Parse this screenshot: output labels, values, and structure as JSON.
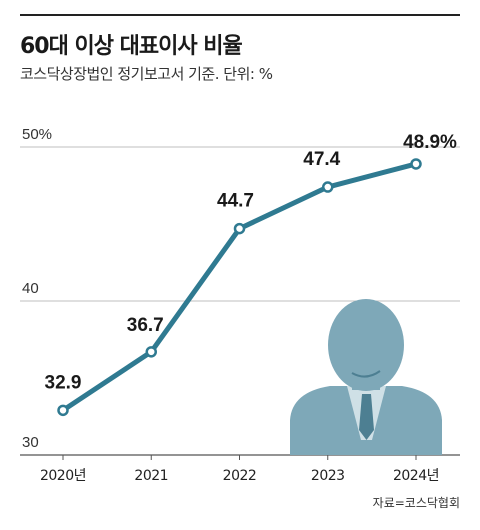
{
  "header": {
    "title": "60대 이상 대표이사 비율",
    "subtitle": "코스닥상장법인 정기보고서 기준. 단위: %"
  },
  "source": "자료=코스닥협회",
  "colors": {
    "line": "#2f7a91",
    "marker_fill": "#ffffff",
    "grid": "#bfbfbf",
    "figure": "#7ea8b8",
    "figure_dark": "#4d7f92",
    "figure_light": "#cfe0e6"
  },
  "icons": [
    "businessman-silhouette-icon"
  ],
  "chart_data": {
    "type": "line",
    "categories": [
      "2020년",
      "2021",
      "2022",
      "2023",
      "2024년"
    ],
    "values": [
      32.9,
      36.7,
      44.7,
      47.4,
      48.9
    ],
    "data_labels": [
      "32.9",
      "36.7",
      "44.7",
      "47.4",
      "48.9%"
    ],
    "yticks": [
      30,
      40,
      50
    ],
    "ytick_labels": [
      "30",
      "40",
      "50%"
    ],
    "ylim": [
      30,
      50
    ],
    "grid": true,
    "legend": "none"
  }
}
